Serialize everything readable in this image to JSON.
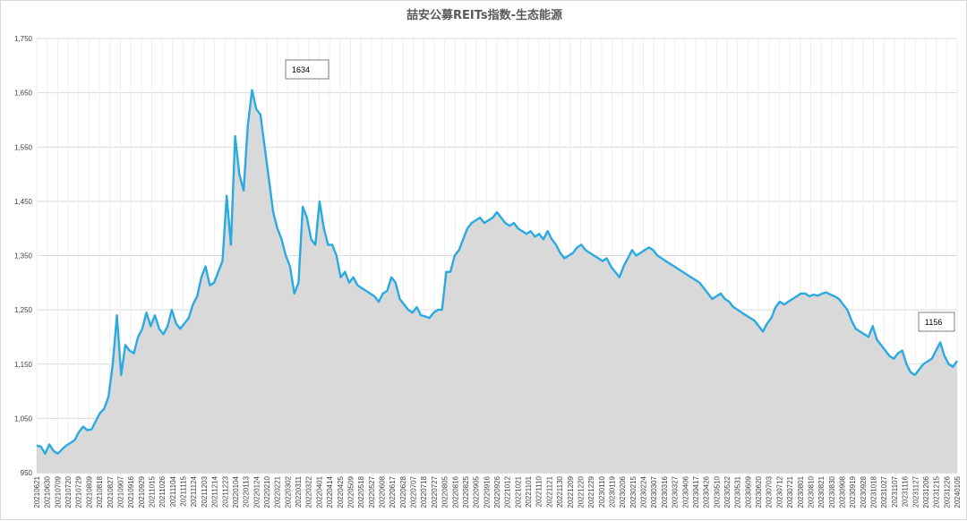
{
  "chart_data": {
    "type": "area",
    "title": "喆安公募REITs指数-生态能源",
    "xlabel": "",
    "ylabel": "",
    "ylim": [
      950,
      1750
    ],
    "y_ticks": [
      "950",
      "1,050",
      "1,150",
      "1,250",
      "1,350",
      "1,450",
      "1,550",
      "1,650",
      "1,750"
    ],
    "y_tick_values": [
      950,
      1050,
      1150,
      1250,
      1350,
      1450,
      1550,
      1650,
      1750
    ],
    "grid": true,
    "legend": "none",
    "x_tick_labels": [
      "20210621",
      "20210630",
      "20210709",
      "20210720",
      "20210729",
      "20210809",
      "20210818",
      "20210827",
      "20210907",
      "20210916",
      "20210929",
      "20211015",
      "20211026",
      "20211104",
      "20211115",
      "20211124",
      "20211203",
      "20211214",
      "20211223",
      "20220104",
      "20220113",
      "20220124",
      "20220210",
      "20220221",
      "20220302",
      "20220311",
      "20220322",
      "20220401",
      "20220414",
      "20220425",
      "20220509",
      "20220518",
      "20220527",
      "20220608",
      "20220617",
      "20220628",
      "20220707",
      "20220718",
      "20220727",
      "20220805",
      "20220816",
      "20220825",
      "20220905",
      "20220916",
      "20220926",
      "20221012",
      "20221021",
      "20221101",
      "20221110",
      "20221121",
      "20221130",
      "20221209",
      "20221220",
      "20221229",
      "20230110",
      "20230119",
      "20230206",
      "20230215",
      "20230224",
      "20230307",
      "20230316",
      "20230327",
      "20230406",
      "20230417",
      "20230426",
      "20230510",
      "20230522",
      "20230531",
      "20230609",
      "20230620",
      "20230703",
      "20230712",
      "20230721",
      "20230801",
      "20230810",
      "20230821",
      "20230830",
      "20230908",
      "20230919",
      "20230928",
      "20231018",
      "20231027",
      "20231107",
      "20231116",
      "20231127",
      "20231206",
      "20231215",
      "20231226",
      "20240105"
    ],
    "series": [
      {
        "color": "#29aae1",
        "fill": "#d9d9d9",
        "points": [
          [
            0,
            1000
          ],
          [
            1,
            998
          ],
          [
            2,
            985
          ],
          [
            3,
            1002
          ],
          [
            4,
            990
          ],
          [
            5,
            985
          ],
          [
            6,
            993
          ],
          [
            7,
            1000
          ],
          [
            8,
            1005
          ],
          [
            9,
            1010
          ],
          [
            10,
            1025
          ],
          [
            11,
            1035
          ],
          [
            12,
            1028
          ],
          [
            13,
            1030
          ],
          [
            14,
            1045
          ],
          [
            15,
            1060
          ],
          [
            16,
            1068
          ],
          [
            17,
            1090
          ],
          [
            18,
            1150
          ],
          [
            19,
            1240
          ],
          [
            20,
            1130
          ],
          [
            21,
            1185
          ],
          [
            22,
            1175
          ],
          [
            23,
            1170
          ],
          [
            24,
            1200
          ],
          [
            25,
            1215
          ],
          [
            26,
            1245
          ],
          [
            27,
            1220
          ],
          [
            28,
            1240
          ],
          [
            29,
            1215
          ],
          [
            30,
            1205
          ],
          [
            31,
            1220
          ],
          [
            32,
            1250
          ],
          [
            33,
            1225
          ],
          [
            34,
            1215
          ],
          [
            35,
            1225
          ],
          [
            36,
            1235
          ],
          [
            37,
            1260
          ],
          [
            38,
            1275
          ],
          [
            39,
            1310
          ],
          [
            40,
            1330
          ],
          [
            41,
            1295
          ],
          [
            42,
            1300
          ],
          [
            43,
            1320
          ],
          [
            44,
            1340
          ],
          [
            45,
            1460
          ],
          [
            46,
            1370
          ],
          [
            47,
            1570
          ],
          [
            48,
            1500
          ],
          [
            49,
            1470
          ],
          [
            50,
            1590
          ],
          [
            51,
            1655
          ],
          [
            52,
            1620
          ],
          [
            53,
            1610
          ],
          [
            54,
            1550
          ],
          [
            55,
            1490
          ],
          [
            56,
            1430
          ],
          [
            57,
            1400
          ],
          [
            58,
            1380
          ],
          [
            59,
            1350
          ],
          [
            60,
            1330
          ],
          [
            61,
            1280
          ],
          [
            62,
            1300
          ],
          [
            63,
            1440
          ],
          [
            64,
            1420
          ],
          [
            65,
            1380
          ],
          [
            66,
            1370
          ],
          [
            67,
            1450
          ],
          [
            68,
            1400
          ],
          [
            69,
            1370
          ],
          [
            70,
            1370
          ],
          [
            71,
            1350
          ],
          [
            72,
            1310
          ],
          [
            73,
            1320
          ],
          [
            74,
            1300
          ],
          [
            75,
            1310
          ],
          [
            76,
            1295
          ],
          [
            77,
            1290
          ],
          [
            78,
            1285
          ],
          [
            79,
            1280
          ],
          [
            80,
            1275
          ],
          [
            81,
            1265
          ],
          [
            82,
            1280
          ],
          [
            83,
            1285
          ],
          [
            84,
            1310
          ],
          [
            85,
            1300
          ],
          [
            86,
            1270
          ],
          [
            87,
            1260
          ],
          [
            88,
            1250
          ],
          [
            89,
            1245
          ],
          [
            90,
            1255
          ],
          [
            91,
            1240
          ],
          [
            92,
            1238
          ],
          [
            93,
            1235
          ],
          [
            94,
            1245
          ],
          [
            95,
            1250
          ],
          [
            96,
            1250
          ],
          [
            97,
            1320
          ],
          [
            98,
            1320
          ],
          [
            99,
            1350
          ],
          [
            100,
            1360
          ],
          [
            101,
            1380
          ],
          [
            102,
            1400
          ],
          [
            103,
            1410
          ],
          [
            104,
            1415
          ],
          [
            105,
            1420
          ],
          [
            106,
            1410
          ],
          [
            107,
            1415
          ],
          [
            108,
            1420
          ],
          [
            109,
            1430
          ],
          [
            110,
            1420
          ],
          [
            111,
            1410
          ],
          [
            112,
            1405
          ],
          [
            113,
            1410
          ],
          [
            114,
            1400
          ],
          [
            115,
            1395
          ],
          [
            116,
            1390
          ],
          [
            117,
            1395
          ],
          [
            118,
            1385
          ],
          [
            119,
            1390
          ],
          [
            120,
            1380
          ],
          [
            121,
            1395
          ],
          [
            122,
            1380
          ],
          [
            123,
            1370
          ],
          [
            124,
            1355
          ],
          [
            125,
            1345
          ],
          [
            126,
            1350
          ],
          [
            127,
            1355
          ],
          [
            128,
            1365
          ],
          [
            129,
            1370
          ],
          [
            130,
            1360
          ],
          [
            131,
            1355
          ],
          [
            132,
            1350
          ],
          [
            133,
            1345
          ],
          [
            134,
            1340
          ],
          [
            135,
            1345
          ],
          [
            136,
            1330
          ],
          [
            137,
            1320
          ],
          [
            138,
            1310
          ],
          [
            139,
            1330
          ],
          [
            140,
            1345
          ],
          [
            141,
            1360
          ],
          [
            142,
            1350
          ],
          [
            143,
            1355
          ],
          [
            144,
            1360
          ],
          [
            145,
            1365
          ],
          [
            146,
            1360
          ],
          [
            147,
            1350
          ],
          [
            148,
            1345
          ],
          [
            149,
            1340
          ],
          [
            150,
            1335
          ],
          [
            151,
            1330
          ],
          [
            152,
            1325
          ],
          [
            153,
            1320
          ],
          [
            154,
            1315
          ],
          [
            155,
            1310
          ],
          [
            156,
            1305
          ],
          [
            157,
            1300
          ],
          [
            158,
            1290
          ],
          [
            159,
            1280
          ],
          [
            160,
            1270
          ],
          [
            161,
            1275
          ],
          [
            162,
            1280
          ],
          [
            163,
            1270
          ],
          [
            164,
            1265
          ],
          [
            165,
            1255
          ],
          [
            166,
            1250
          ],
          [
            167,
            1245
          ],
          [
            168,
            1240
          ],
          [
            169,
            1235
          ],
          [
            170,
            1230
          ],
          [
            171,
            1220
          ],
          [
            172,
            1210
          ],
          [
            173,
            1225
          ],
          [
            174,
            1235
          ],
          [
            175,
            1255
          ],
          [
            176,
            1265
          ],
          [
            177,
            1260
          ],
          [
            178,
            1265
          ],
          [
            179,
            1270
          ],
          [
            180,
            1275
          ],
          [
            181,
            1280
          ],
          [
            182,
            1280
          ],
          [
            183,
            1275
          ],
          [
            184,
            1278
          ],
          [
            185,
            1276
          ],
          [
            186,
            1280
          ],
          [
            187,
            1282
          ],
          [
            188,
            1278
          ],
          [
            189,
            1275
          ],
          [
            190,
            1270
          ],
          [
            191,
            1260
          ],
          [
            192,
            1250
          ],
          [
            193,
            1230
          ],
          [
            194,
            1215
          ],
          [
            195,
            1210
          ],
          [
            196,
            1205
          ],
          [
            197,
            1200
          ],
          [
            198,
            1220
          ],
          [
            199,
            1195
          ],
          [
            200,
            1185
          ],
          [
            201,
            1175
          ],
          [
            202,
            1165
          ],
          [
            203,
            1160
          ],
          [
            204,
            1170
          ],
          [
            205,
            1175
          ],
          [
            206,
            1150
          ],
          [
            207,
            1135
          ],
          [
            208,
            1130
          ],
          [
            209,
            1140
          ],
          [
            210,
            1150
          ],
          [
            211,
            1155
          ],
          [
            212,
            1160
          ],
          [
            213,
            1175
          ],
          [
            214,
            1190
          ],
          [
            215,
            1165
          ],
          [
            216,
            1150
          ],
          [
            217,
            1145
          ],
          [
            218,
            1156
          ]
        ]
      }
    ],
    "annotations": [
      {
        "label": "1634",
        "value": 1634
      },
      {
        "label": "1156",
        "value": 1156
      }
    ]
  }
}
